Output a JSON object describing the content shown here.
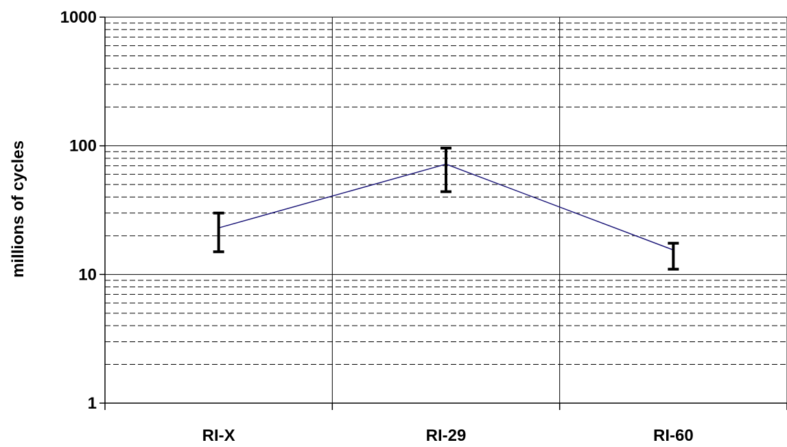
{
  "chart_data": {
    "type": "line",
    "title": "",
    "xlabel": "",
    "ylabel": "millions of cycles",
    "y_scale": "log",
    "ylim": [
      1,
      1000
    ],
    "y_tick_labels": [
      "1",
      "10",
      "100",
      "1000"
    ],
    "grid": {
      "major_horizontal": true,
      "minor_horizontal_dashed": true,
      "vertical_category_separators": true
    },
    "legend": "none",
    "categories": [
      "RI-X",
      "RI-29",
      "RI-60"
    ],
    "series": [
      {
        "color": "#1f1a7a",
        "values": [
          23,
          72,
          15.5
        ],
        "error_low": [
          15,
          44,
          11
        ],
        "error_high": [
          30,
          96,
          17.5
        ]
      }
    ],
    "error_bar_color": "#000000"
  }
}
